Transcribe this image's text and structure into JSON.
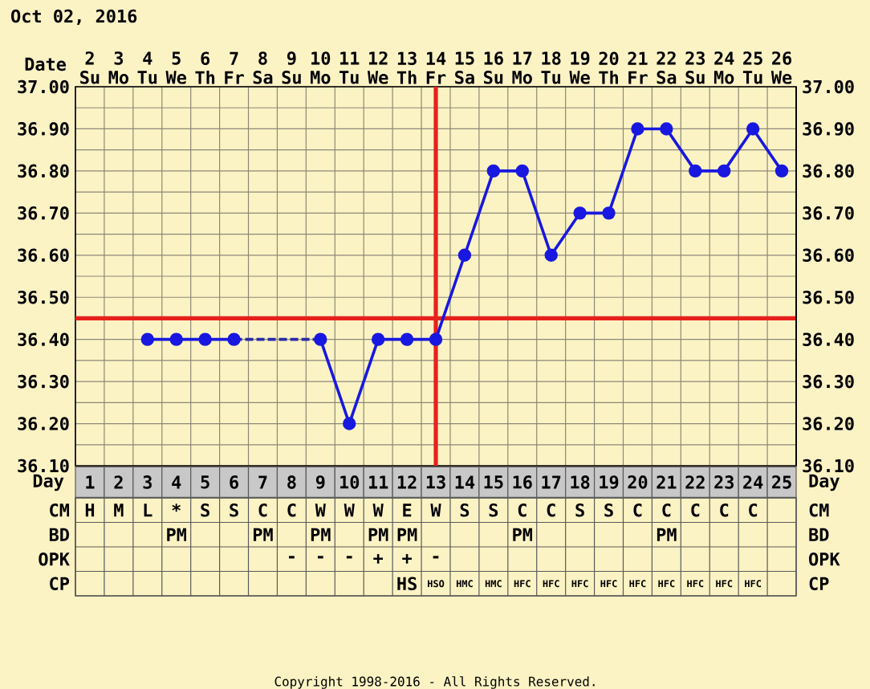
{
  "chart_data": [
    {
      "type": "line",
      "title": "Oct 02, 2016",
      "xlabel": "Date",
      "categories": [
        "2 Su",
        "3 Mo",
        "4 Tu",
        "5 We",
        "6 Th",
        "7 Fr",
        "8 Sa",
        "9 Su",
        "10 Mo",
        "11 Tu",
        "12 We",
        "13 Th",
        "14 Fr",
        "15 Sa",
        "16 Su",
        "17 Mo",
        "18 Tu",
        "19 We",
        "20 Th",
        "21 Fr",
        "22 Sa",
        "23 Su",
        "24 Mo",
        "25 Tu",
        "26 We"
      ],
      "series": [
        {
          "color": "#1818e0",
          "values": [
            null,
            null,
            36.4,
            36.4,
            36.4,
            36.4,
            null,
            null,
            36.4,
            36.2,
            36.4,
            36.4,
            36.4,
            36.6,
            36.8,
            36.8,
            36.6,
            36.7,
            36.7,
            36.9,
            36.9,
            36.8,
            36.8,
            36.9,
            36.8
          ]
        },
        {
          "color": "#2a2aa8",
          "values": [
            null,
            null,
            null,
            null,
            null,
            36.4,
            36.4,
            36.4,
            36.4,
            null,
            null,
            null,
            null,
            null,
            null,
            null,
            null,
            null,
            null,
            null,
            null,
            null,
            null,
            null,
            null
          ],
          "line_style": "dashed",
          "marker": "none"
        }
      ],
      "marker": "circle",
      "ylim": [
        36.1,
        37.0
      ],
      "yticks": [
        {
          "value": 36.1,
          "label": "36.10"
        },
        {
          "value": 36.2,
          "label": "36.20"
        },
        {
          "value": 36.3,
          "label": "36.30"
        },
        {
          "value": 36.4,
          "label": "36.40"
        },
        {
          "value": 36.5,
          "label": "36.50"
        },
        {
          "value": 36.6,
          "label": "36.60"
        },
        {
          "value": 36.7,
          "label": "36.70"
        },
        {
          "value": 36.8,
          "label": "36.80"
        },
        {
          "value": 36.9,
          "label": "36.90"
        },
        {
          "value": 37.0,
          "label": "37.00"
        }
      ],
      "y2lim": [
        36.1,
        37.0
      ],
      "y2ticks": [
        {
          "value": 36.1,
          "label": "36.10"
        },
        {
          "value": 36.2,
          "label": "36.20"
        },
        {
          "value": 36.3,
          "label": "36.30"
        },
        {
          "value": 36.4,
          "label": "36.40"
        },
        {
          "value": 36.5,
          "label": "36.50"
        },
        {
          "value": 36.6,
          "label": "36.60"
        },
        {
          "value": 36.7,
          "label": "36.70"
        },
        {
          "value": 36.8,
          "label": "36.80"
        },
        {
          "value": 36.9,
          "label": "36.90"
        },
        {
          "value": 37.0,
          "label": "37.00"
        }
      ],
      "grid": true,
      "ref_lines": [
        {
          "axis": "y",
          "value": 36.45,
          "color": "#e8201c"
        },
        {
          "axis": "x",
          "value": "14 Fr",
          "color": "#e8201c"
        }
      ],
      "annotations": [
        "Copyright 1998-2016 - All Rights Reserved."
      ]
    },
    {
      "type": "heatmap",
      "xlabel": "Day",
      "categories": [
        "1",
        "2",
        "3",
        "4",
        "5",
        "6",
        "7",
        "8",
        "9",
        "10",
        "11",
        "12",
        "13",
        "14",
        "15",
        "16",
        "17",
        "18",
        "19",
        "20",
        "21",
        "22",
        "23",
        "24",
        "25"
      ],
      "y_categories": [
        "CM",
        "BD",
        "OPK",
        "CP"
      ],
      "y2_categories": [
        "CM",
        "BD",
        "OPK",
        "CP"
      ],
      "cells": [
        [
          null,
          null,
          null,
          null,
          null,
          null,
          null,
          null,
          null,
          null,
          null,
          null,
          null,
          null,
          null,
          null,
          null,
          null,
          null,
          null,
          null,
          null,
          null,
          null,
          null
        ],
        [
          null,
          null,
          null,
          null,
          null,
          null,
          null,
          null,
          null,
          null,
          null,
          null,
          null,
          null,
          null,
          null,
          null,
          null,
          null,
          null,
          null,
          null,
          null,
          null,
          null
        ],
        [
          null,
          null,
          null,
          null,
          null,
          null,
          null,
          null,
          null,
          null,
          null,
          null,
          null,
          null,
          null,
          null,
          null,
          null,
          null,
          null,
          null,
          null,
          null,
          null,
          null
        ],
        [
          null,
          null,
          null,
          null,
          null,
          null,
          null,
          null,
          null,
          null,
          null,
          null,
          null,
          null,
          null,
          null,
          null,
          null,
          null,
          null,
          null,
          null,
          null,
          null,
          null
        ]
      ],
      "cell_labels": [
        [
          "H",
          "M",
          "L",
          "*",
          "S",
          "S",
          "C",
          "C",
          "W",
          "W",
          "W",
          "E",
          "W",
          "S",
          "S",
          "C",
          "C",
          "S",
          "S",
          "C",
          "C",
          "C",
          "C",
          "C",
          null
        ],
        [
          null,
          null,
          null,
          "PM",
          null,
          null,
          "PM",
          null,
          "PM",
          null,
          "PM",
          "PM",
          null,
          null,
          null,
          "PM",
          null,
          null,
          null,
          null,
          "PM",
          null,
          null,
          null,
          null
        ],
        [
          null,
          null,
          null,
          null,
          null,
          null,
          null,
          "-",
          "-",
          "-",
          "+",
          "+",
          "-",
          null,
          null,
          null,
          null,
          null,
          null,
          null,
          null,
          null,
          null,
          null,
          null
        ],
        [
          null,
          null,
          null,
          null,
          null,
          null,
          null,
          null,
          null,
          null,
          null,
          "HS",
          "HSO",
          "HMC",
          "HMC",
          "HFC",
          "HFC",
          "HFC",
          "HFC",
          "HFC",
          "HFC",
          "HFC",
          "HFC",
          "HFC",
          null
        ]
      ],
      "grid": true
    }
  ]
}
